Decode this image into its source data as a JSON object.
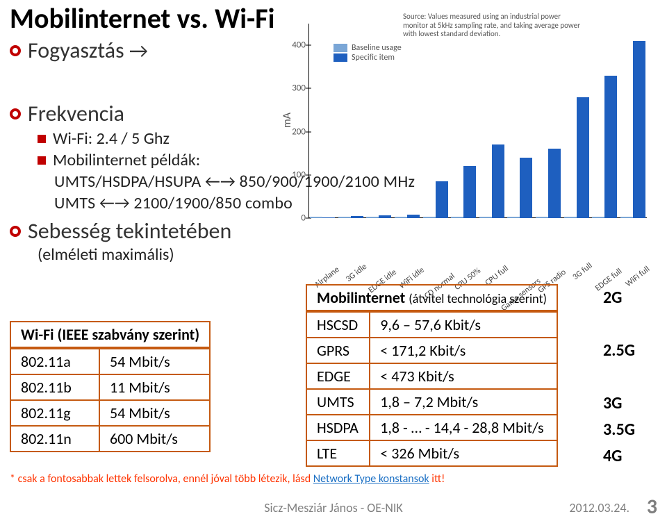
{
  "title": "Mobilinternet vs. Wi-Fi",
  "bullets": {
    "consumption": "Fogyasztás",
    "arrow": "→",
    "frequency": "Frekvencia",
    "wifi_freq": "Wi-Fi: 2.4 / 5 Ghz",
    "mobil_examples_label": "Mobilinternet példák:",
    "umts_hsdpa": "UMTS/HSDPA/HSUPA ←→ 850/900/1900/2100 MHz",
    "umts_combo": "UMTS ←→ 2100/1900/850 combo",
    "speed": "Sebesség tekintetében",
    "theoretical": "(elméleti maximális)"
  },
  "wifi_table": {
    "header": "Wi-Fi (IEEE szabvány szerint)",
    "rows": [
      [
        "802.11a",
        "54 Mbit/s"
      ],
      [
        "802.11b",
        "11 Mbit/s"
      ],
      [
        "802.11g",
        "54 Mbit/s"
      ],
      [
        "802.11n",
        "600 Mbit/s"
      ]
    ]
  },
  "mobil_table": {
    "header_left": "Mobilinternet",
    "header_right": "(átvitel technológia szerint)",
    "rows": [
      [
        "HSCSD",
        "9,6 – 57,6 Kbit/s"
      ],
      [
        "GPRS",
        "< 171,2 Kbit/s"
      ],
      [
        "EDGE",
        "< 473 Kbit/s"
      ],
      [
        "UMTS",
        "1,8 – 7,2 Mbit/s"
      ],
      [
        "HSDPA",
        "1,8 - … - 14,4 - 28,8 Mbit/s"
      ],
      [
        "LTE",
        "< 326 Mbit/s"
      ]
    ]
  },
  "generations": [
    "2G",
    "",
    "2.5G",
    "",
    "3G",
    "3.5G",
    "4G"
  ],
  "footnote": {
    "text_before": "* csak a fontosabbak lettek felsorolva, ennél jóval több létezik, lásd ",
    "link_text": "Network Type konstansok",
    "text_after": " itt!"
  },
  "footer": {
    "center": "Sicz-Mesziár János - OE-NIK",
    "date": "2012.03.24.",
    "page": "3"
  },
  "chart": {
    "type": "bar",
    "y_axis_label": "mA",
    "ylim": [
      0,
      450
    ],
    "yticks": [
      0,
      100,
      200,
      300,
      400
    ],
    "source_note": "Source: Values measured using an industrial power monitor at 5kHz sampling rate, and taking average power with lowest standard deviation.",
    "legend": [
      {
        "label": "Baseline usage",
        "color": "#7aa6d6"
      },
      {
        "label": "Specific item",
        "color": "#1e5fbf"
      }
    ],
    "categories": [
      "Airplane",
      "3G idle",
      "EDGE idle",
      "WiFi idle",
      "LCD normal",
      "CPU 50%",
      "CPU full",
      "Game sensors",
      "GPS radio",
      "3G full",
      "EDGE full",
      "WiFi full"
    ],
    "baseline": [
      4,
      4,
      4,
      4,
      4,
      4,
      4,
      4,
      4,
      4,
      4,
      4
    ],
    "specific": [
      1,
      5,
      6,
      8,
      85,
      120,
      170,
      140,
      160,
      280,
      330,
      410
    ],
    "bar_color_baseline": "#7aa6d6",
    "bar_color_specific": "#1e5fbf",
    "grid_color": "#000000",
    "background_color": "#ffffff"
  }
}
